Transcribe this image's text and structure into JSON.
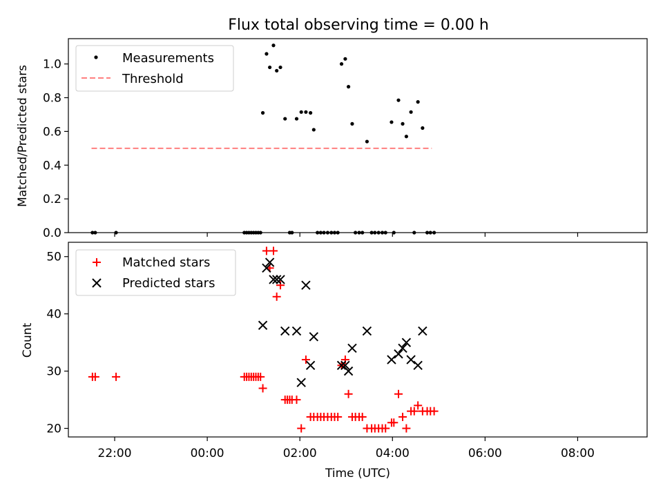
{
  "title": "Flux total observing time = 0.00 h",
  "chart_data": [
    {
      "type": "scatter",
      "ylabel": "Matched/Predicted stars",
      "xlabel": "",
      "ylim": [
        0,
        1.15
      ],
      "yticks": [
        0.0,
        0.2,
        0.4,
        0.6,
        0.8,
        1.0
      ],
      "ytick_labels": [
        "0.0",
        "0.2",
        "0.4",
        "0.6",
        "0.8",
        "1.0"
      ],
      "legend": {
        "placement": "top-left",
        "entries": [
          "Measurements",
          "Threshold"
        ]
      },
      "series": [
        {
          "name": "Measurements",
          "marker": "dot",
          "color": "#000000",
          "points": [
            [
              21.52,
              0
            ],
            [
              21.58,
              0
            ],
            [
              22.03,
              0
            ],
            [
              24.8,
              0
            ],
            [
              24.85,
              0
            ],
            [
              24.9,
              0
            ],
            [
              24.95,
              0
            ],
            [
              25.0,
              0
            ],
            [
              25.05,
              0
            ],
            [
              25.1,
              0
            ],
            [
              25.15,
              0
            ],
            [
              25.2,
              0.71
            ],
            [
              25.28,
              1.06
            ],
            [
              25.35,
              0.98
            ],
            [
              25.43,
              1.11
            ],
            [
              25.5,
              0.96
            ],
            [
              25.58,
              0.98
            ],
            [
              25.68,
              0.675
            ],
            [
              25.78,
              0
            ],
            [
              25.83,
              0
            ],
            [
              25.93,
              0.675
            ],
            [
              26.03,
              0.715
            ],
            [
              26.13,
              0.715
            ],
            [
              26.23,
              0.71
            ],
            [
              26.3,
              0.61
            ],
            [
              26.38,
              0
            ],
            [
              26.45,
              0
            ],
            [
              26.52,
              0
            ],
            [
              26.6,
              0
            ],
            [
              26.68,
              0
            ],
            [
              26.75,
              0
            ],
            [
              26.82,
              0
            ],
            [
              26.9,
              1.0
            ],
            [
              26.98,
              1.03
            ],
            [
              27.05,
              0.865
            ],
            [
              27.13,
              0.645
            ],
            [
              27.2,
              0
            ],
            [
              27.28,
              0
            ],
            [
              27.35,
              0
            ],
            [
              27.45,
              0.54
            ],
            [
              27.55,
              0
            ],
            [
              27.62,
              0
            ],
            [
              27.7,
              0
            ],
            [
              27.78,
              0
            ],
            [
              27.85,
              0
            ],
            [
              27.98,
              0.655
            ],
            [
              28.03,
              0
            ],
            [
              28.13,
              0.785
            ],
            [
              28.22,
              0.645
            ],
            [
              28.3,
              0.57
            ],
            [
              28.4,
              0.715
            ],
            [
              28.47,
              0
            ],
            [
              28.55,
              0.775
            ],
            [
              28.65,
              0.62
            ],
            [
              28.75,
              0
            ],
            [
              28.82,
              0
            ],
            [
              28.9,
              0
            ]
          ]
        },
        {
          "name": "Threshold",
          "style": "dashed",
          "color": "#ff7f7f",
          "points": [
            [
              21.5,
              0.5
            ],
            [
              28.85,
              0.5
            ]
          ]
        }
      ]
    },
    {
      "type": "scatter",
      "ylabel": "Count",
      "xlabel": "Time (UTC)",
      "ylim": [
        18.5,
        52.5
      ],
      "yticks": [
        20,
        30,
        40,
        50
      ],
      "ytick_labels": [
        "20",
        "30",
        "40",
        "50"
      ],
      "xticks": [
        22,
        24,
        26,
        28,
        30,
        32
      ],
      "xtick_labels": [
        "22:00",
        "00:00",
        "02:00",
        "04:00",
        "06:00",
        "08:00"
      ],
      "legend": {
        "placement": "top-left",
        "entries": [
          "Matched stars",
          "Predicted stars"
        ]
      },
      "series": [
        {
          "name": "Matched stars",
          "marker": "plus",
          "color": "#ff0000",
          "points": [
            [
              21.52,
              29
            ],
            [
              21.58,
              29
            ],
            [
              22.03,
              29
            ],
            [
              24.8,
              29
            ],
            [
              24.85,
              29
            ],
            [
              24.9,
              29
            ],
            [
              24.95,
              29
            ],
            [
              25.0,
              29
            ],
            [
              25.05,
              29
            ],
            [
              25.1,
              29
            ],
            [
              25.15,
              29
            ],
            [
              25.2,
              27
            ],
            [
              25.28,
              51
            ],
            [
              25.35,
              48
            ],
            [
              25.43,
              51
            ],
            [
              25.5,
              43
            ],
            [
              25.58,
              45
            ],
            [
              25.68,
              25
            ],
            [
              25.73,
              25
            ],
            [
              25.78,
              25
            ],
            [
              25.83,
              25
            ],
            [
              25.93,
              25
            ],
            [
              26.03,
              20
            ],
            [
              26.13,
              32
            ],
            [
              26.23,
              22
            ],
            [
              26.3,
              22
            ],
            [
              26.38,
              22
            ],
            [
              26.45,
              22
            ],
            [
              26.52,
              22
            ],
            [
              26.6,
              22
            ],
            [
              26.68,
              22
            ],
            [
              26.75,
              22
            ],
            [
              26.82,
              22
            ],
            [
              26.9,
              31
            ],
            [
              26.98,
              32
            ],
            [
              27.05,
              26
            ],
            [
              27.13,
              22
            ],
            [
              27.2,
              22
            ],
            [
              27.28,
              22
            ],
            [
              27.35,
              22
            ],
            [
              27.45,
              20
            ],
            [
              27.55,
              20
            ],
            [
              27.62,
              20
            ],
            [
              27.7,
              20
            ],
            [
              27.78,
              20
            ],
            [
              27.85,
              20
            ],
            [
              27.98,
              21
            ],
            [
              28.03,
              21
            ],
            [
              28.13,
              26
            ],
            [
              28.22,
              22
            ],
            [
              28.3,
              20
            ],
            [
              28.4,
              23
            ],
            [
              28.47,
              23
            ],
            [
              28.55,
              24
            ],
            [
              28.65,
              23
            ],
            [
              28.75,
              23
            ],
            [
              28.82,
              23
            ],
            [
              28.9,
              23
            ]
          ]
        },
        {
          "name": "Predicted stars",
          "marker": "x",
          "color": "#000000",
          "points": [
            [
              25.2,
              38
            ],
            [
              25.28,
              48
            ],
            [
              25.35,
              49
            ],
            [
              25.43,
              46
            ],
            [
              25.5,
              46
            ],
            [
              25.58,
              46
            ],
            [
              25.68,
              37
            ],
            [
              25.93,
              37
            ],
            [
              26.03,
              28
            ],
            [
              26.13,
              45
            ],
            [
              26.23,
              31
            ],
            [
              26.3,
              36
            ],
            [
              26.9,
              31
            ],
            [
              26.98,
              31
            ],
            [
              27.05,
              30
            ],
            [
              27.13,
              34
            ],
            [
              27.45,
              37
            ],
            [
              27.98,
              32
            ],
            [
              28.13,
              33
            ],
            [
              28.22,
              34
            ],
            [
              28.3,
              35
            ],
            [
              28.4,
              32
            ],
            [
              28.55,
              31
            ],
            [
              28.65,
              37
            ]
          ]
        }
      ]
    }
  ]
}
